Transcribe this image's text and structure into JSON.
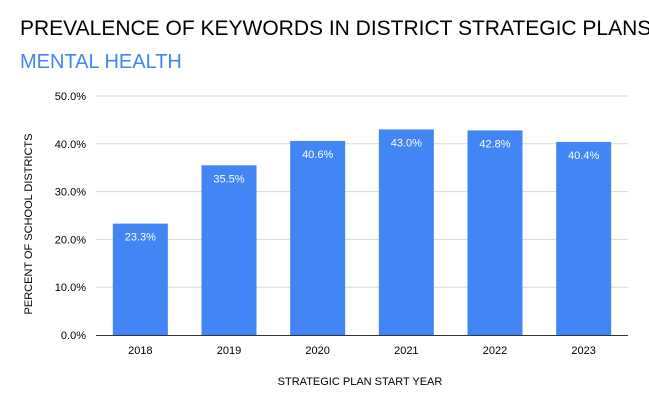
{
  "chart_data": {
    "type": "bar",
    "title": "PREVALENCE OF KEYWORDS IN DISTRICT STRATEGIC PLANS",
    "subtitle": "MENTAL HEALTH",
    "xlabel": "STRATEGIC PLAN START YEAR",
    "ylabel": "PERCENT OF SCHOOL DISTRICTS",
    "categories": [
      "2018",
      "2019",
      "2020",
      "2021",
      "2022",
      "2023"
    ],
    "values": [
      23.3,
      35.5,
      40.6,
      43.0,
      42.8,
      40.4
    ],
    "data_labels": [
      "23.3%",
      "35.5%",
      "40.6%",
      "43.0%",
      "42.8%",
      "40.4%"
    ],
    "ylim": [
      0,
      50
    ],
    "yticks": [
      0,
      10,
      20,
      30,
      40,
      50
    ],
    "ytick_labels": [
      "0.0%",
      "10.0%",
      "20.0%",
      "30.0%",
      "40.0%",
      "50.0%"
    ],
    "grid": true,
    "legend": "none",
    "colors": {
      "bar": "#4285f4",
      "subtitle": "#4285f4",
      "grid": "#d9d9d9",
      "axis": "#333333",
      "text": "#000000",
      "data_label": "#ffffff"
    }
  }
}
